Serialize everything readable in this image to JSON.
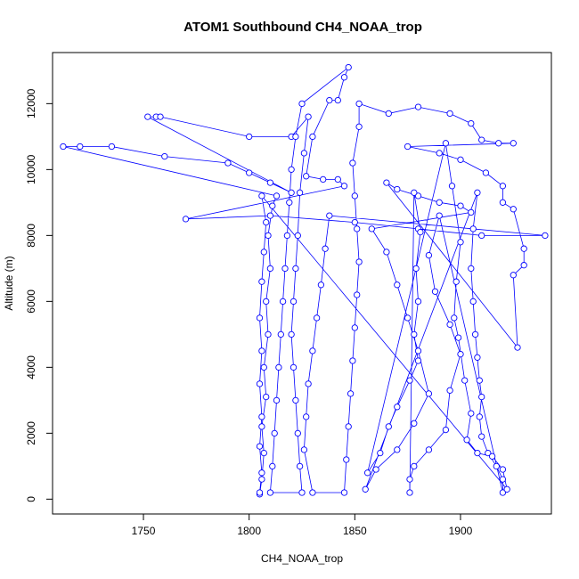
{
  "chart_data": {
    "type": "scatter",
    "title": "ATOM1 Southbound CH4_NOAA_trop",
    "xlabel": "CH4_NOAA_trop",
    "ylabel": "Altitude (m)",
    "xlim": [
      1707,
      1943
    ],
    "ylim": [
      -450,
      13550
    ],
    "x_ticks": [
      1750,
      1800,
      1850,
      1900
    ],
    "y_ticks": [
      0,
      2000,
      4000,
      6000,
      8000,
      10000,
      12000
    ],
    "grid": false,
    "legend": "none",
    "series": [
      {
        "color": "#0000ff",
        "marker": "open-circle",
        "line": true,
        "points": [
          [
            1805,
            150
          ],
          [
            1806,
            600
          ],
          [
            1807,
            1400
          ],
          [
            1806,
            2200
          ],
          [
            1808,
            3100
          ],
          [
            1807,
            4000
          ],
          [
            1809,
            5000
          ],
          [
            1808,
            6000
          ],
          [
            1810,
            7000
          ],
          [
            1809,
            8000
          ],
          [
            1811,
            8900
          ],
          [
            1813,
            9200
          ],
          [
            1712,
            10700
          ],
          [
            1720,
            10700
          ],
          [
            1735,
            10700
          ],
          [
            1760,
            10400
          ],
          [
            1790,
            10200
          ],
          [
            1800,
            9900
          ],
          [
            1810,
            9600
          ],
          [
            1820,
            9300
          ],
          [
            1752,
            11600
          ],
          [
            1756,
            11600
          ],
          [
            1758,
            11600
          ],
          [
            1800,
            11000
          ],
          [
            1820,
            11000
          ],
          [
            1828,
            11600
          ],
          [
            1826,
            10500
          ],
          [
            1824,
            9300
          ],
          [
            1823,
            8000
          ],
          [
            1822,
            7000
          ],
          [
            1821,
            6000
          ],
          [
            1820,
            5000
          ],
          [
            1821,
            4000
          ],
          [
            1822,
            3000
          ],
          [
            1823,
            2000
          ],
          [
            1824,
            1000
          ],
          [
            1825,
            200
          ],
          [
            1810,
            200
          ],
          [
            1811,
            1000
          ],
          [
            1812,
            2000
          ],
          [
            1813,
            3000
          ],
          [
            1814,
            4000
          ],
          [
            1815,
            5000
          ],
          [
            1816,
            6000
          ],
          [
            1817,
            7000
          ],
          [
            1818,
            8000
          ],
          [
            1819,
            9000
          ],
          [
            1820,
            10000
          ],
          [
            1822,
            11000
          ],
          [
            1825,
            12000
          ],
          [
            1847,
            13100
          ],
          [
            1845,
            12800
          ],
          [
            1842,
            12100
          ],
          [
            1838,
            12100
          ],
          [
            1830,
            11000
          ],
          [
            1827,
            9800
          ],
          [
            1835,
            9700
          ],
          [
            1842,
            9700
          ],
          [
            1845,
            9500
          ],
          [
            1770,
            8500
          ],
          [
            1810,
            8600
          ],
          [
            1850,
            8400
          ],
          [
            1880,
            8200
          ],
          [
            1910,
            8000
          ],
          [
            1940,
            8000
          ],
          [
            1838,
            8600
          ],
          [
            1836,
            7600
          ],
          [
            1834,
            6500
          ],
          [
            1832,
            5500
          ],
          [
            1830,
            4500
          ],
          [
            1828,
            3500
          ],
          [
            1827,
            2500
          ],
          [
            1826,
            1500
          ],
          [
            1830,
            200
          ],
          [
            1845,
            200
          ],
          [
            1846,
            1200
          ],
          [
            1847,
            2200
          ],
          [
            1848,
            3200
          ],
          [
            1849,
            4200
          ],
          [
            1850,
            5200
          ],
          [
            1851,
            6200
          ],
          [
            1852,
            7200
          ],
          [
            1851,
            8200
          ],
          [
            1850,
            9200
          ],
          [
            1849,
            10200
          ],
          [
            1852,
            11300
          ],
          [
            1852,
            12000
          ],
          [
            1866,
            11700
          ],
          [
            1880,
            11900
          ],
          [
            1895,
            11700
          ],
          [
            1905,
            11400
          ],
          [
            1910,
            10900
          ],
          [
            1918,
            10800
          ],
          [
            1925,
            10800
          ],
          [
            1875,
            10700
          ],
          [
            1890,
            10500
          ],
          [
            1900,
            10300
          ],
          [
            1912,
            9900
          ],
          [
            1920,
            9500
          ],
          [
            1920,
            9000
          ],
          [
            1925,
            8800
          ],
          [
            1930,
            7600
          ],
          [
            1930,
            7100
          ],
          [
            1925,
            6800
          ],
          [
            1927,
            4600
          ],
          [
            1865,
            9600
          ],
          [
            1870,
            9400
          ],
          [
            1880,
            9200
          ],
          [
            1890,
            9000
          ],
          [
            1900,
            8900
          ],
          [
            1905,
            8700
          ],
          [
            1858,
            8200
          ],
          [
            1865,
            7500
          ],
          [
            1870,
            6500
          ],
          [
            1875,
            5500
          ],
          [
            1880,
            4500
          ],
          [
            1885,
            3200
          ],
          [
            1878,
            2300
          ],
          [
            1870,
            1500
          ],
          [
            1860,
            900
          ],
          [
            1855,
            300
          ],
          [
            1908,
            9300
          ],
          [
            1906,
            8200
          ],
          [
            1905,
            7000
          ],
          [
            1906,
            6000
          ],
          [
            1907,
            5000
          ],
          [
            1908,
            4300
          ],
          [
            1909,
            3600
          ],
          [
            1910,
            3100
          ],
          [
            1909,
            2500
          ],
          [
            1910,
            1900
          ],
          [
            1913,
            1400
          ],
          [
            1917,
            1000
          ],
          [
            1920,
            600
          ],
          [
            1920,
            200
          ],
          [
            1890,
            8600
          ],
          [
            1885,
            7400
          ],
          [
            1888,
            6300
          ],
          [
            1895,
            5300
          ],
          [
            1900,
            4400
          ],
          [
            1895,
            3300
          ],
          [
            1893,
            2100
          ],
          [
            1885,
            1500
          ],
          [
            1878,
            1000
          ],
          [
            1876,
            600
          ],
          [
            1876,
            200
          ],
          [
            1878,
            9300
          ],
          [
            1881,
            8100
          ],
          [
            1879,
            7000
          ],
          [
            1880,
            6000
          ],
          [
            1878,
            5000
          ],
          [
            1880,
            4200
          ],
          [
            1876,
            3600
          ],
          [
            1870,
            2800
          ],
          [
            1866,
            2200
          ],
          [
            1862,
            1400
          ],
          [
            1856,
            800
          ],
          [
            1893,
            10800
          ],
          [
            1896,
            9500
          ],
          [
            1900,
            7800
          ],
          [
            1898,
            6600
          ],
          [
            1897,
            5500
          ],
          [
            1899,
            4900
          ],
          [
            1902,
            3600
          ],
          [
            1905,
            2600
          ],
          [
            1903,
            1800
          ],
          [
            1908,
            1400
          ],
          [
            1915,
            1300
          ],
          [
            1920,
            900
          ],
          [
            1922,
            300
          ],
          [
            1806,
            9200
          ],
          [
            1808,
            8400
          ],
          [
            1807,
            7500
          ],
          [
            1806,
            6600
          ],
          [
            1805,
            5500
          ],
          [
            1806,
            4500
          ],
          [
            1805,
            3500
          ],
          [
            1806,
            2500
          ],
          [
            1805,
            1600
          ],
          [
            1806,
            800
          ],
          [
            1805,
            200
          ]
        ]
      }
    ]
  }
}
